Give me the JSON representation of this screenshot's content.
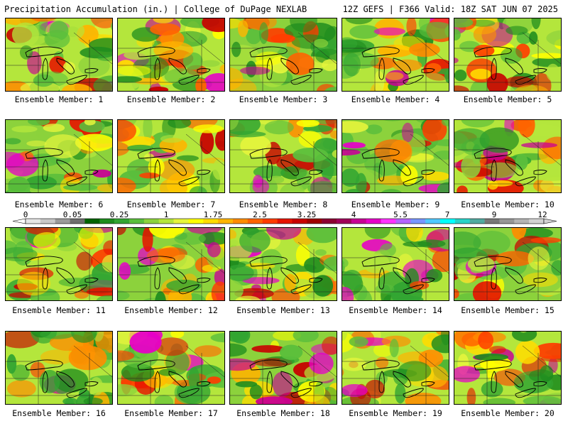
{
  "header": {
    "left": "Precipitation Accumulation (in.) | College of DuPage NEXLAB",
    "right": "12Z GEFS | F366 Valid: 18Z SAT JUN 07 2025"
  },
  "scale": {
    "labels": [
      "0",
      "0.05",
      "0.25",
      "1",
      "1.75",
      "2.5",
      "3.25",
      "4",
      "5.5",
      "7",
      "9",
      "12"
    ],
    "colors": [
      "#e6e6e6",
      "#c8c8c8",
      "#9a9a9a",
      "#6e6e6e",
      "#006400",
      "#1e8c1e",
      "#32a532",
      "#5abe3c",
      "#8cd23c",
      "#b4e63c",
      "#e6f53c",
      "#ffff00",
      "#ffdc00",
      "#ffb400",
      "#ff8c00",
      "#ff6400",
      "#ff3c00",
      "#e61400",
      "#c80000",
      "#a00000",
      "#8c0032",
      "#a0005a",
      "#c80096",
      "#e600c8",
      "#ff32ff",
      "#b464ff",
      "#7896ff",
      "#50c8ff",
      "#00ffff",
      "#28d2c8",
      "#50aaa0",
      "#787878",
      "#969696",
      "#b4b4b4",
      "#d2d2d2"
    ]
  },
  "members": [
    {
      "label": "Ensemble Member: 1"
    },
    {
      "label": "Ensemble Member: 2"
    },
    {
      "label": "Ensemble Member: 3"
    },
    {
      "label": "Ensemble Member: 4"
    },
    {
      "label": "Ensemble Member: 5"
    },
    {
      "label": "Ensemble Member: 6"
    },
    {
      "label": "Ensemble Member: 7"
    },
    {
      "label": "Ensemble Member: 8"
    },
    {
      "label": "Ensemble Member: 9"
    },
    {
      "label": "Ensemble Member: 10"
    },
    {
      "label": "Ensemble Member: 11"
    },
    {
      "label": "Ensemble Member: 12"
    },
    {
      "label": "Ensemble Member: 13"
    },
    {
      "label": "Ensemble Member: 14"
    },
    {
      "label": "Ensemble Member: 15"
    },
    {
      "label": "Ensemble Member: 16"
    },
    {
      "label": "Ensemble Member: 17"
    },
    {
      "label": "Ensemble Member: 18"
    },
    {
      "label": "Ensemble Member: 19"
    },
    {
      "label": "Ensemble Member: 20"
    }
  ]
}
